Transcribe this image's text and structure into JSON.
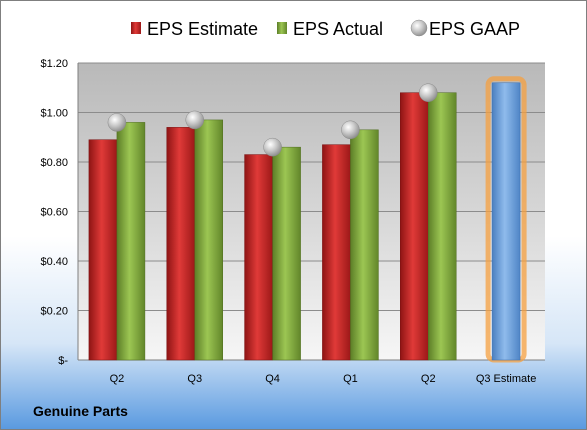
{
  "company": "Genuine Parts",
  "legend": [
    {
      "label": "EPS Estimate",
      "kind": "bar",
      "color": "#c0201f"
    },
    {
      "label": "EPS Actual",
      "kind": "bar",
      "color": "#7ea83a"
    },
    {
      "label": "EPS GAAP",
      "kind": "marker",
      "color": "#b4b4b4"
    }
  ],
  "chart_data": {
    "type": "bar",
    "categories": [
      "Q2",
      "Q3",
      "Q4",
      "Q1",
      "Q2",
      "Q3 Estimate"
    ],
    "series": [
      {
        "name": "EPS Estimate",
        "values": [
          0.89,
          0.94,
          0.83,
          0.87,
          1.08,
          null
        ],
        "color": "#c0201f"
      },
      {
        "name": "EPS Actual",
        "values": [
          0.96,
          0.97,
          0.86,
          0.93,
          1.08,
          null
        ],
        "color": "#7ea83a"
      },
      {
        "name": "EPS GAAP",
        "values": [
          0.96,
          0.97,
          0.86,
          0.93,
          1.08,
          null
        ],
        "color": "#b4b4b4"
      },
      {
        "values": [
          null,
          null,
          null,
          null,
          null,
          1.12
        ],
        "color": "#6fa2dc",
        "highlight": "#f5a040"
      }
    ],
    "ylim": [
      0,
      1.2
    ],
    "yticks": [
      0,
      0.2,
      0.4,
      0.6,
      0.8,
      1.0,
      1.2
    ],
    "ytick_labels": [
      "$-",
      "$0.20",
      "$0.40",
      "$0.60",
      "$0.80",
      "$1.00",
      "$1.20"
    ],
    "grid": true,
    "legend_position": "top"
  }
}
